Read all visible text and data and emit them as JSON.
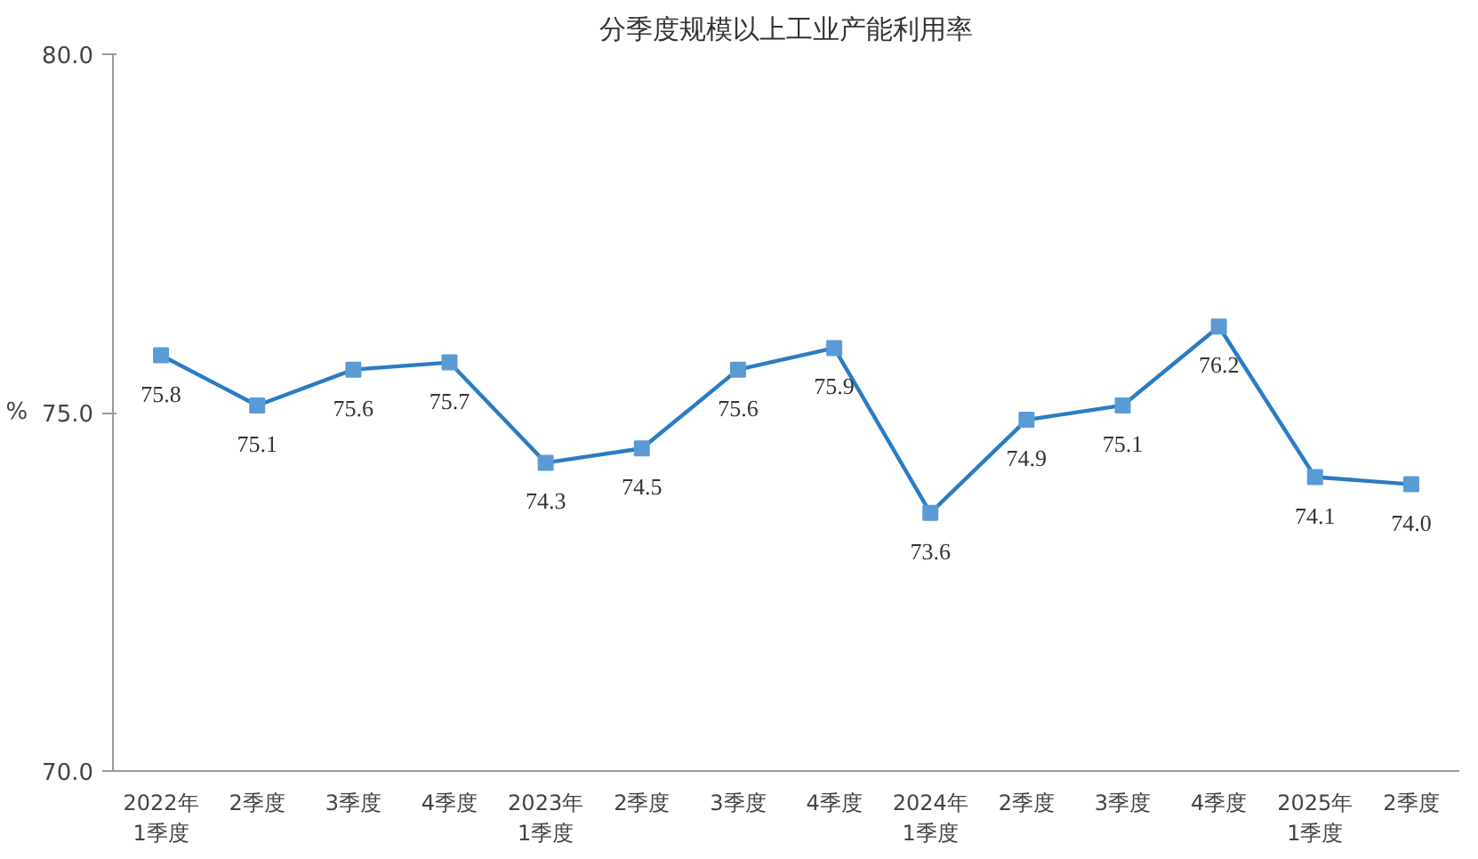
{
  "chart_data": {
    "type": "line",
    "title": "分季度规模以上工业产能利用率",
    "ylabel": "%",
    "categories": [
      "2022年\n1季度",
      "2季度",
      "3季度",
      "4季度",
      "2023年\n1季度",
      "2季度",
      "3季度",
      "4季度",
      "2024年\n1季度",
      "2季度",
      "3季度",
      "4季度",
      "2025年\n1季度",
      "2季度"
    ],
    "series": [
      {
        "color": "#2b7bc4",
        "values": [
          75.8,
          75.1,
          75.6,
          75.7,
          74.3,
          74.5,
          75.6,
          75.9,
          73.6,
          74.9,
          75.1,
          76.2,
          74.1,
          74.0
        ]
      }
    ],
    "ylim": [
      70,
      80
    ],
    "yticks": [
      {
        "value": 70,
        "label": "70.0"
      },
      {
        "value": 75,
        "label": "75.0"
      },
      {
        "value": 80,
        "label": "80.0"
      }
    ],
    "value_labels": [
      "75.8",
      "75.1",
      "75.6",
      "75.7",
      "74.3",
      "74.5",
      "75.6",
      "75.9",
      "73.6",
      "74.9",
      "75.1",
      "76.2",
      "74.1",
      "74.0"
    ],
    "marker": "square",
    "grid": false
  }
}
